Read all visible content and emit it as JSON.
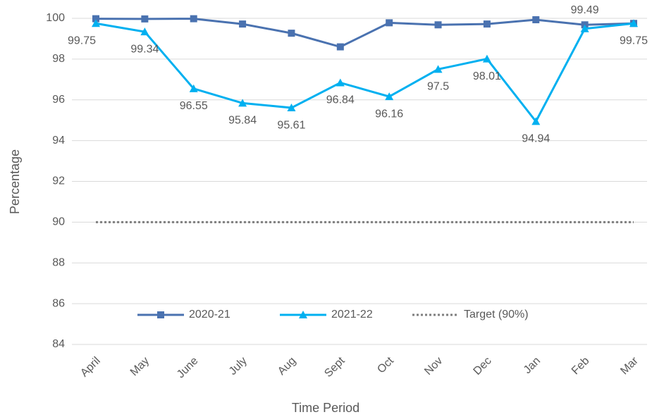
{
  "chart_data": {
    "type": "line",
    "x_label": "Time Period",
    "y_label": "Percentage",
    "categories": [
      "April",
      "May",
      "June",
      "July",
      "Aug",
      "Sept",
      "Oct",
      "Nov",
      "Dec",
      "Jan",
      "Feb",
      "Mar"
    ],
    "series": [
      {
        "name": "2020-21",
        "color": "#4a72b0",
        "marker": "square",
        "style": "solid",
        "data_labels": false,
        "values": [
          99.98,
          99.97,
          99.98,
          99.72,
          99.27,
          98.6,
          99.78,
          99.68,
          99.72,
          99.93,
          99.68,
          99.75
        ]
      },
      {
        "name": "2021-22",
        "color": "#00b0f0",
        "marker": "triangle",
        "style": "solid",
        "data_labels": true,
        "values": [
          99.75,
          99.34,
          96.55,
          95.84,
          95.61,
          96.84,
          96.16,
          97.5,
          98.01,
          94.94,
          99.49,
          99.75
        ]
      },
      {
        "name": "Target (90%)",
        "color": "#7f7f7f",
        "marker": "none",
        "style": "dotted",
        "data_labels": false,
        "values": [
          90,
          90,
          90,
          90,
          90,
          90,
          90,
          90,
          90,
          90,
          90,
          90
        ]
      }
    ],
    "ylim": [
      84,
      100
    ],
    "yticks": [
      84,
      86,
      88,
      90,
      92,
      94,
      96,
      98,
      100
    ],
    "grid": true,
    "legend": "bottom"
  }
}
